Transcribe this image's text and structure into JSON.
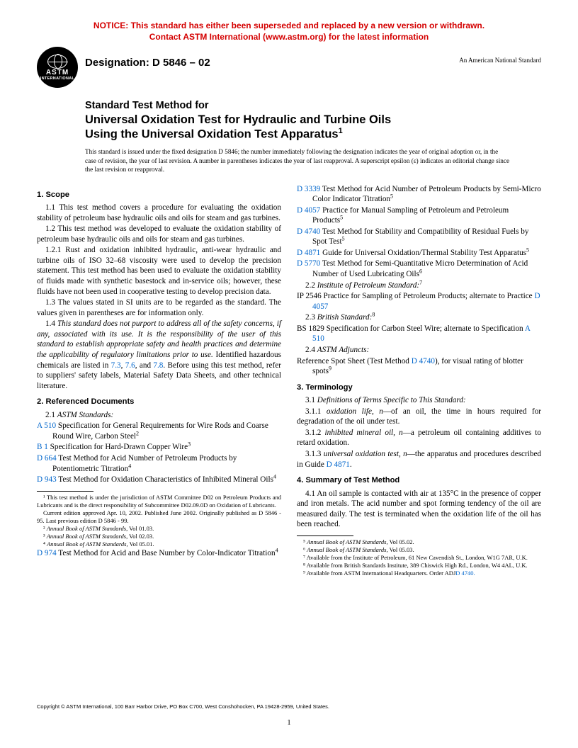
{
  "colors": {
    "notice": "#d40000",
    "link": "#0066cc",
    "text": "#000000",
    "bg": "#ffffff"
  },
  "notice": {
    "line1": "NOTICE: This standard has either been superseded and replaced by a new version or withdrawn.",
    "line2": "Contact ASTM International (www.astm.org) for the latest information"
  },
  "logo": {
    "brand": "ASTM",
    "sub": "INTERNATIONAL"
  },
  "header": {
    "designation": "Designation: D 5846 – 02",
    "ansi": "An American National Standard"
  },
  "title": {
    "line1": "Standard Test Method for",
    "line2a": "Universal Oxidation Test for Hydraulic and Turbine Oils",
    "line2b": "Using the Universal Oxidation Test Apparatus",
    "sup": "1"
  },
  "issuance": "This standard is issued under the fixed designation D 5846; the number immediately following the designation indicates the year of original adoption or, in the case of revision, the year of last revision. A number in parentheses indicates the year of last reapproval. A superscript epsilon (ε) indicates an editorial change since the last revision or reapproval.",
  "sections": {
    "scope_head": "1. Scope",
    "scope_1_1": "1.1 This test method covers a procedure for evaluating the oxidation stability of petroleum base hydraulic oils and oils for steam and gas turbines.",
    "scope_1_2": "1.2 This test method was developed to evaluate the oxidation stability of petroleum base hydraulic oils and oils for steam and gas turbines.",
    "scope_1_2_1": "1.2.1 Rust and oxidation inhibited hydraulic, anti-wear hydraulic and turbine oils of ISO 32–68 viscosity were used to develop the precision statement. This test method has been used to evaluate the oxidation stability of fluids made with synthetic basestock and in-service oils; however, these fluids have not been used in cooperative testing to develop precision data.",
    "scope_1_3": "1.3 The values stated in SI units are to be regarded as the standard. The values given in parentheses are for information only.",
    "scope_1_4_a": "1.4 ",
    "scope_1_4_it": "This standard does not purport to address all of the safety concerns, if any, associated with its use. It is the responsibility of the user of this standard to establish appropriate safety and health practices and determine the applicability of regulatory limitations prior to use.",
    "scope_1_4_b": " Identified hazardous chemicals are listed in ",
    "l73": "7.3",
    "c1": ", ",
    "l76": "7.6",
    "c2": ", and ",
    "l78": "7.8",
    "scope_1_4_c": ". Before using this test method, refer to suppliers' safety labels, Material Safety Data Sheets, and other technical literature.",
    "ref_head": "2. Referenced Documents",
    "ref_2_1_lbl": "2.1 ",
    "ref_2_1_it": "ASTM Standards:",
    "refs": [
      {
        "code": "A 510",
        "text": " Specification for General Requirements for Wire Rods and Coarse Round Wire, Carbon Steel",
        "sup": "2"
      },
      {
        "code": "B 1",
        "text": " Specification for Hard-Drawn Copper Wire",
        "sup": "3"
      },
      {
        "code": "D 664",
        "text": " Test Method for Acid Number of Petroleum Products by Potentiometric Titration",
        "sup": "4"
      },
      {
        "code": "D 943",
        "text": " Test Method for Oxidation Characteristics of Inhibited Mineral Oils",
        "sup": "4"
      },
      {
        "code": "D 974",
        "text": " Test Method for Acid and Base Number by Color-Indicator Titration",
        "sup": "4"
      },
      {
        "code": "D 3339",
        "text": " Test Method for Acid Number of Petroleum Products by Semi-Micro Color Indicator Titration",
        "sup": "5"
      },
      {
        "code": "D 4057",
        "text": " Practice for Manual Sampling of Petroleum and Petroleum Products",
        "sup": "5"
      },
      {
        "code": "D 4740",
        "text": " Test Method for Stability and Compatibility of Residual Fuels by Spot Test",
        "sup": "5"
      },
      {
        "code": "D 4871",
        "text": " Guide for Universal Oxidation/Thermal Stability Test Apparatus",
        "sup": "5"
      },
      {
        "code": "D 5770",
        "text": " Test Method for Semi-Quantitative Micro Determination of Acid Number of Used Lubricating Oils",
        "sup": "6"
      }
    ],
    "ref_2_2_lbl": "2.2 ",
    "ref_2_2_it": "Institute of Petroleum Standard:",
    "ref_2_2_sup": "7",
    "ip2546_code": "IP 2546",
    "ip2546_text": " Practice for Sampling of Petroleum Products; alternate to Practice ",
    "ip2546_link": "D 4057",
    "ref_2_3_lbl": "2.3 ",
    "ref_2_3_it": "British Standard:",
    "ref_2_3_sup": "8",
    "bs1829_code": "BS 1829",
    "bs1829_text": " Specification for Carbon Steel Wire; alternate to Specification ",
    "bs1829_link": "A 510",
    "ref_2_4_lbl": "2.4 ",
    "ref_2_4_it": "ASTM Adjuncts:",
    "adjunct_a": "Reference Spot Sheet (Test Method ",
    "adjunct_link": "D 4740",
    "adjunct_b": "), for visual rating of blotter spots",
    "adjunct_sup": "9",
    "term_head": "3. Terminology",
    "term_3_1_lbl": "3.1 ",
    "term_3_1_it": "Definitions of Terms Specific to This Standard:",
    "term_3_1_1_lbl": "3.1.1 ",
    "term_3_1_1_it": "oxidation life",
    "term_3_1_1_n": ", n",
    "term_3_1_1_txt": "—of an oil, the time in hours required for degradation of the oil under test.",
    "term_3_1_2_lbl": "3.1.2 ",
    "term_3_1_2_it": "inhibited mineral oil",
    "term_3_1_2_n": ", n",
    "term_3_1_2_txt": "—a petroleum oil containing additives to retard oxidation.",
    "term_3_1_3_lbl": "3.1.3 ",
    "term_3_1_3_it": "universal oxidation test",
    "term_3_1_3_n": ", n",
    "term_3_1_3_txt": "—the apparatus and procedures described in Guide ",
    "term_3_1_3_link": "D 4871",
    "term_3_1_3_end": ".",
    "summ_head": "4. Summary of Test Method",
    "summ_4_1": "4.1 An oil sample is contacted with air at 135°C in the presence of copper and iron metals. The acid number and spot forming tendency of the oil are measured daily. The test is terminated when the oxidation life of the oil has been reached."
  },
  "footnotes_left": [
    "¹ This test method is under the jurisdiction of ASTM Committee D02 on Petroleum Products and Lubricants and is the direct responsibility of Subcommittee D02.09.0D on Oxidation of Lubricants.",
    "Current edition approved Apr. 10, 2002. Published June 2002. Originally published as D 5846 - 95. Last previous edition D 5846 - 99.",
    "² Annual Book of ASTM Standards, Vol 01.03.",
    "³ Annual Book of ASTM Standards, Vol 02.03.",
    "⁴ Annual Book of ASTM Standards, Vol 05.01."
  ],
  "footnotes_right": [
    "⁵ Annual Book of ASTM Standards, Vol 05.02.",
    "⁶ Annual Book of ASTM Standards, Vol 05.03.",
    "⁷ Available from the Institute of Petroleum, 61 New Cavendish St., London, W1G 7AR, U.K.",
    "⁸ Available from British Standards Institute, 389 Chiswick High Rd., London, W4 4AL, U.K.",
    "⁹ Available from ASTM International Headquarters. Order ADJD 4740."
  ],
  "copyright": "Copyright © ASTM International, 100 Barr Harbor Drive, PO Box C700, West Conshohocken, PA 19428-2959, United States.",
  "pagenum": "1"
}
